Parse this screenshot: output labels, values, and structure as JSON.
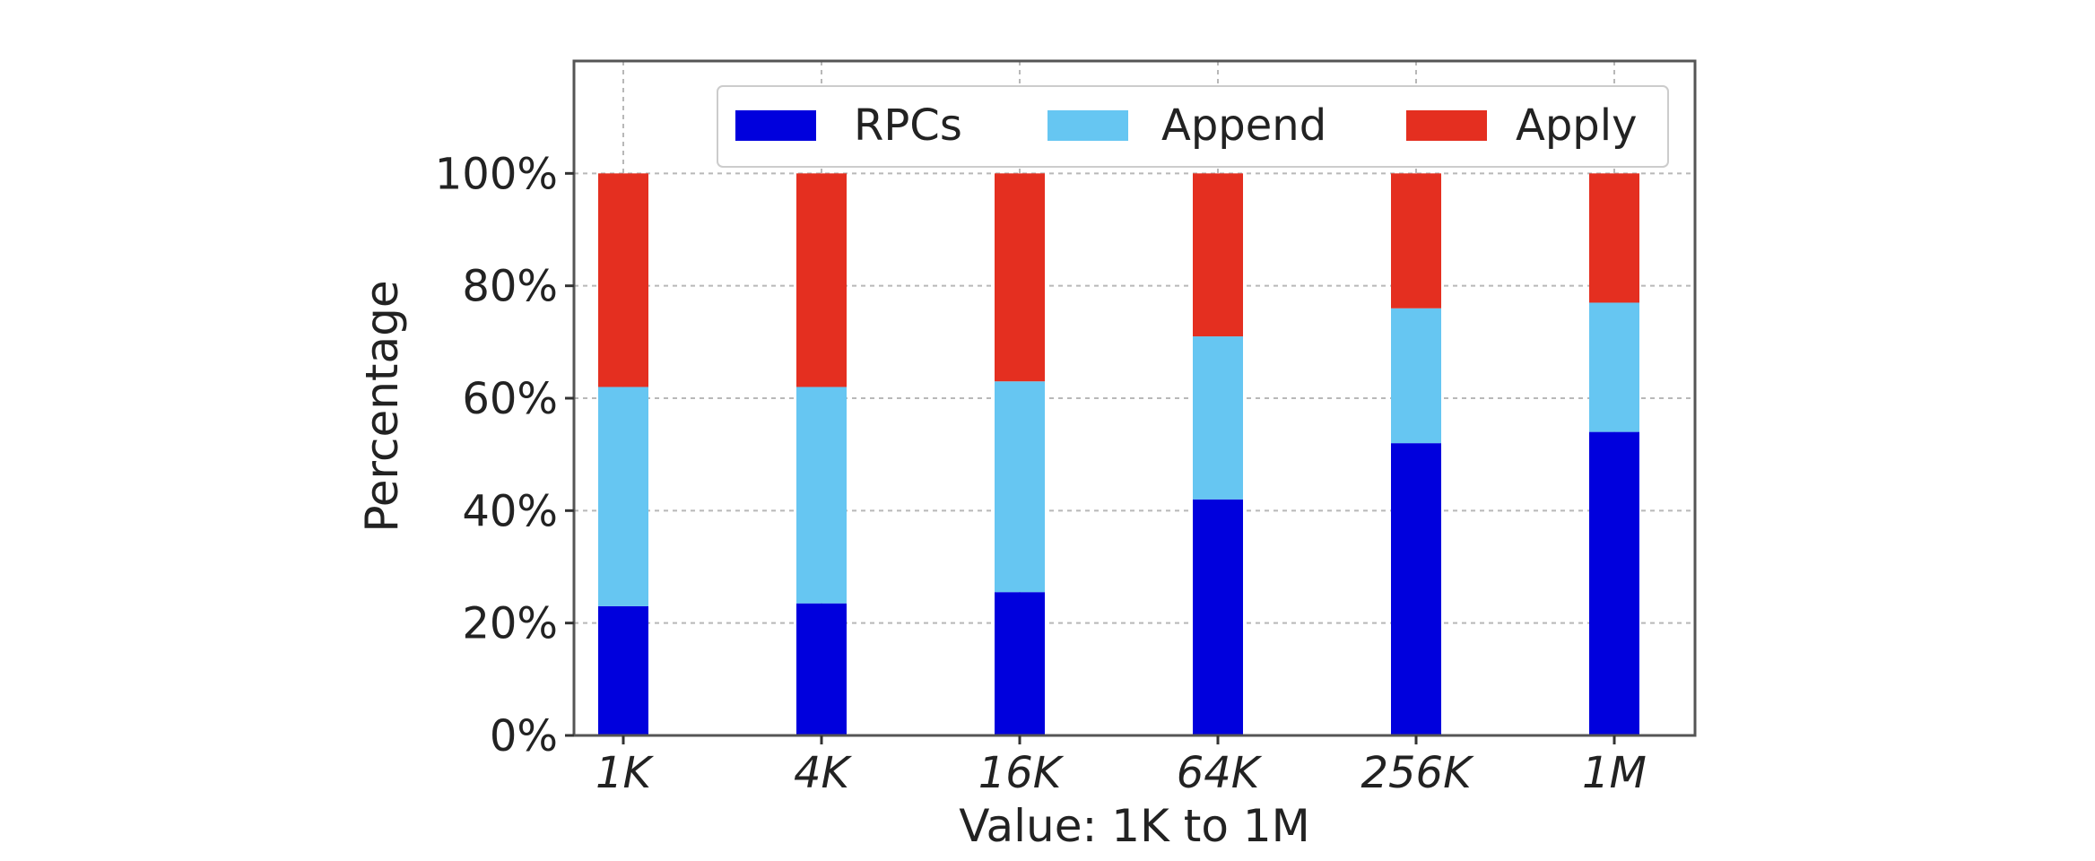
{
  "chart_data": {
    "type": "bar",
    "stacked": true,
    "title": "",
    "xlabel": "Value: 1K to 1M",
    "ylabel": "Percentage",
    "categories": [
      "1K",
      "4K",
      "16K",
      "64K",
      "256K",
      "1M"
    ],
    "ylim": [
      0,
      120
    ],
    "yticks": [
      0,
      20,
      40,
      60,
      80,
      100
    ],
    "ytick_labels": [
      "0%",
      "20%",
      "40%",
      "60%",
      "80%",
      "100%"
    ],
    "grid": true,
    "legend_position": "top-right",
    "series": [
      {
        "name": "RPCs",
        "color": "#0000dd",
        "values": [
          23,
          23.5,
          25.5,
          42,
          52,
          54
        ]
      },
      {
        "name": "Append",
        "color": "#66c6f2",
        "values": [
          39,
          38.5,
          37.5,
          29,
          24,
          23
        ]
      },
      {
        "name": "Apply",
        "color": "#e42f20",
        "values": [
          38,
          38,
          37,
          29,
          24,
          23
        ]
      }
    ]
  }
}
